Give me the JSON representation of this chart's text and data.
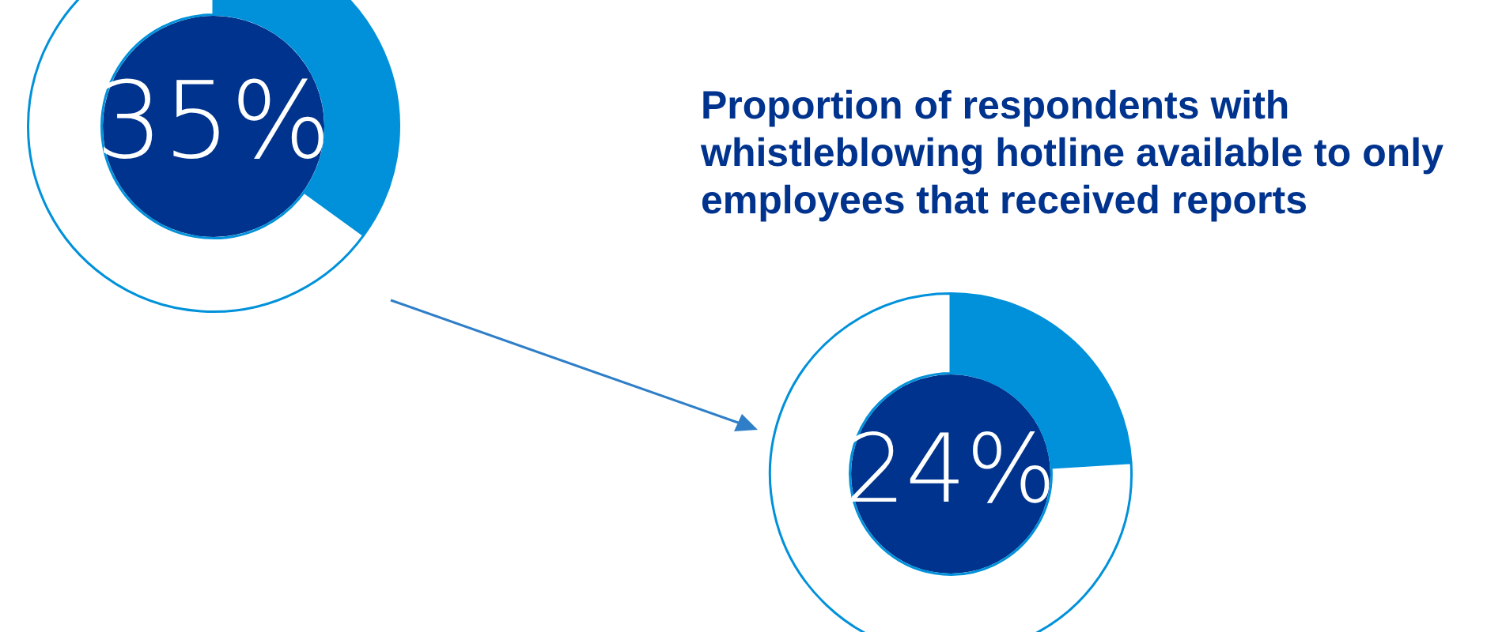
{
  "chart_data": [
    {
      "type": "donut",
      "categories": [
        null,
        null
      ],
      "values": [
        35,
        65
      ],
      "colors": [
        "#0091da",
        "#ffffff"
      ],
      "value_labels": [
        "35%",
        null
      ],
      "legend": false
    },
    {
      "type": "donut",
      "title": "Proportion of respondents with whistleblowing hotline available to only employees that received reports",
      "categories": [
        null,
        null
      ],
      "values": [
        24,
        76
      ],
      "colors": [
        "#0091da",
        "#ffffff"
      ],
      "value_labels": [
        "24%",
        null
      ],
      "legend": false
    }
  ]
}
